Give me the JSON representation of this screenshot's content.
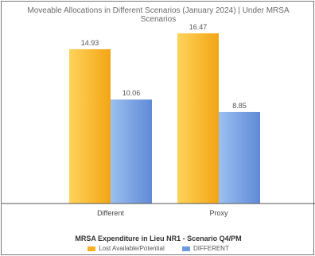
{
  "chart_data": {
    "type": "bar",
    "title_lines": [
      "Moveable Allocations in Different Scenarios (January 2024) | Under MRSA",
      "Scenarios"
    ],
    "categories": [
      "Different",
      "Proxy"
    ],
    "series": [
      {
        "name": "Lost Available/Potential",
        "values": [
          14.93,
          16.47
        ],
        "color": "#f5b323"
      },
      {
        "name": "DIFFERENT",
        "values": [
          10.06,
          8.85
        ],
        "color": "#6f9be0"
      }
    ],
    "value_labels": [
      [
        "14.93",
        "16.47"
      ],
      [
        "10.06",
        "8.85"
      ]
    ],
    "ylim": [
      0,
      18
    ],
    "grid": false,
    "legend_position": "bottom",
    "caption": "MRSA Expenditure in Lieu NR1 - Scenario Q4/PM"
  }
}
